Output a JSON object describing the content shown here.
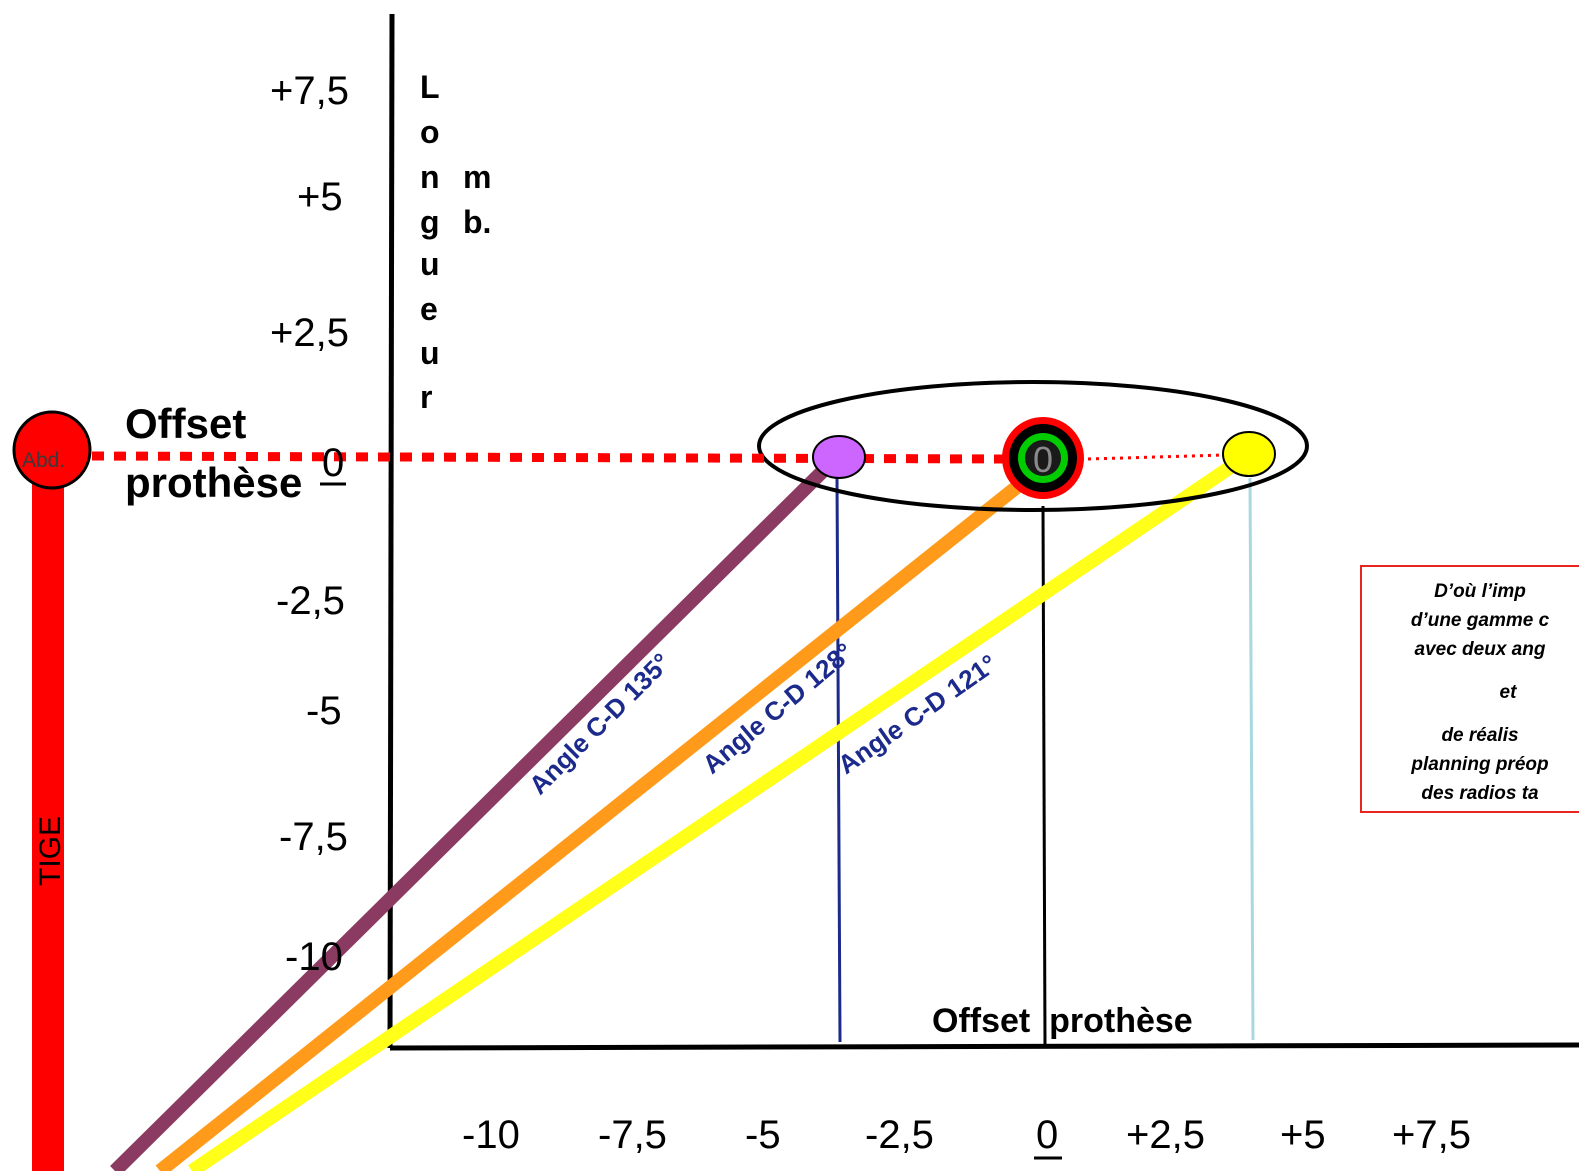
{
  "diagram": {
    "y_axis_title_letters": [
      "L",
      "o",
      "n",
      "g",
      "u",
      "e",
      "u",
      "r"
    ],
    "y_axis_subtitle": [
      "m",
      "b."
    ],
    "y_ticks": [
      "+7,5",
      "+5",
      "+2,5",
      "-2,5",
      "-5",
      "-7,5",
      "-10"
    ],
    "y_zero": "0",
    "x_ticks": [
      "-10",
      "-7,5",
      "-5",
      "-2,5",
      "0",
      "+2,5",
      "+5",
      "+7,5"
    ],
    "x_axis_title": "Offset  prothèse",
    "offset_label": [
      "Offset",
      "prothèse"
    ],
    "abd_label": "Abd.",
    "tige_label": "TIGE",
    "center_marker_label": "0",
    "angles": [
      {
        "label": "Angle  C-D  135°",
        "color": "#8b3a62"
      },
      {
        "label": "Angle  C-D  128°",
        "color": "#ff9a1a"
      },
      {
        "label": "Angle  C-D  121°",
        "color": "#ffff1a"
      }
    ],
    "colors": {
      "tige": "#ff0000",
      "dotted_line": "#ff0000",
      "purple_point": "#cc66ff",
      "yellow_point": "#ffff00",
      "center_ring_outer": "#ff0000",
      "center_ring_mid": "#000000",
      "center_ring_inner": "#00cc00",
      "drop_line_purple": "#1c2a8c",
      "drop_line_yellow": "#a8d8e0"
    },
    "note_lines": [
      "D’où l’imp",
      "d’une gamme c",
      "avec deux ang",
      "et",
      "de réalis",
      "planning préop",
      "des radios ta"
    ]
  }
}
